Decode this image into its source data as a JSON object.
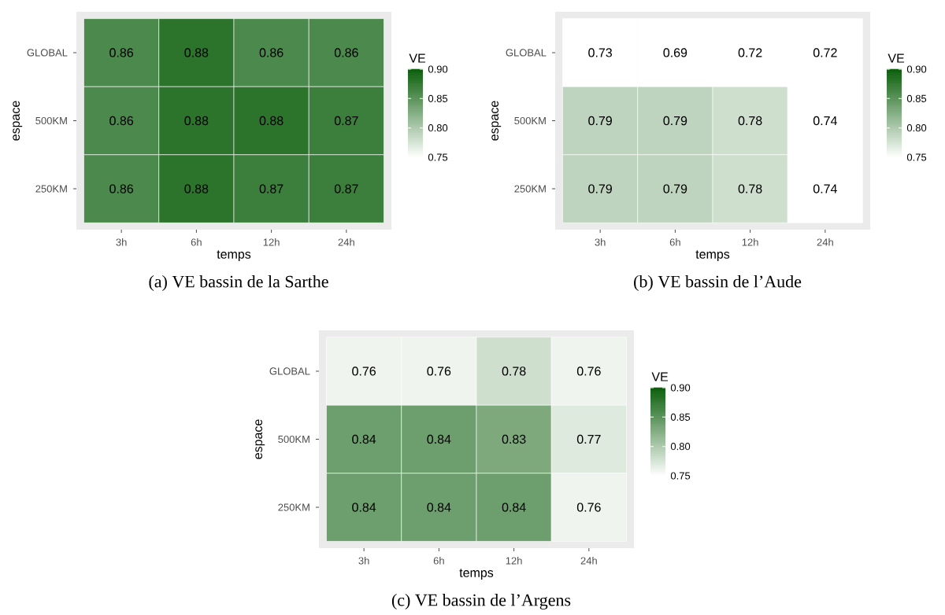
{
  "chart_data": [
    {
      "type": "heatmap",
      "title": "(a) VE bassin de la Sarthe",
      "xlabel": "temps",
      "ylabel": "espace",
      "clabel": "VE",
      "color": "#0b5e0b",
      "data_labels": true,
      "categories": [
        "3h",
        "6h",
        "12h",
        "24h"
      ],
      "y_categories": [
        "GLOBAL",
        "500KM",
        "250KM"
      ],
      "cells": [
        [
          0.86,
          0.88,
          0.86,
          0.86
        ],
        [
          0.86,
          0.88,
          0.88,
          0.87
        ],
        [
          0.86,
          0.88,
          0.87,
          0.87
        ]
      ],
      "clim": [
        0.75,
        0.9
      ],
      "cticks": [
        {
          "value": 0.75,
          "label": "0.75"
        },
        {
          "value": 0.8,
          "label": "0.80"
        },
        {
          "value": 0.85,
          "label": "0.85"
        },
        {
          "value": 0.9,
          "label": "0.90"
        }
      ]
    },
    {
      "type": "heatmap",
      "title": "(b) VE bassin de l’Aude",
      "xlabel": "temps",
      "ylabel": "espace",
      "clabel": "VE",
      "color": "#0b5e0b",
      "data_labels": true,
      "categories": [
        "3h",
        "6h",
        "12h",
        "24h"
      ],
      "y_categories": [
        "GLOBAL",
        "500KM",
        "250KM"
      ],
      "cells": [
        [
          0.73,
          0.69,
          0.72,
          0.72
        ],
        [
          0.79,
          0.79,
          0.78,
          0.74
        ],
        [
          0.79,
          0.79,
          0.78,
          0.74
        ]
      ],
      "clim": [
        0.75,
        0.9
      ],
      "cticks": [
        {
          "value": 0.75,
          "label": "0.75"
        },
        {
          "value": 0.8,
          "label": "0.80"
        },
        {
          "value": 0.85,
          "label": "0.85"
        },
        {
          "value": 0.9,
          "label": "0.90"
        }
      ]
    },
    {
      "type": "heatmap",
      "title": "(c) VE bassin de l’Argens",
      "xlabel": "temps",
      "ylabel": "espace",
      "clabel": "VE",
      "color": "#0b5e0b",
      "data_labels": true,
      "categories": [
        "3h",
        "6h",
        "12h",
        "24h"
      ],
      "y_categories": [
        "GLOBAL",
        "500KM",
        "250KM"
      ],
      "cells": [
        [
          0.76,
          0.76,
          0.78,
          0.76
        ],
        [
          0.84,
          0.84,
          0.83,
          0.77
        ],
        [
          0.84,
          0.84,
          0.84,
          0.76
        ]
      ],
      "clim": [
        0.75,
        0.9
      ],
      "cticks": [
        {
          "value": 0.75,
          "label": "0.75"
        },
        {
          "value": 0.8,
          "label": "0.80"
        },
        {
          "value": 0.85,
          "label": "0.85"
        },
        {
          "value": 0.9,
          "label": "0.90"
        }
      ]
    }
  ]
}
